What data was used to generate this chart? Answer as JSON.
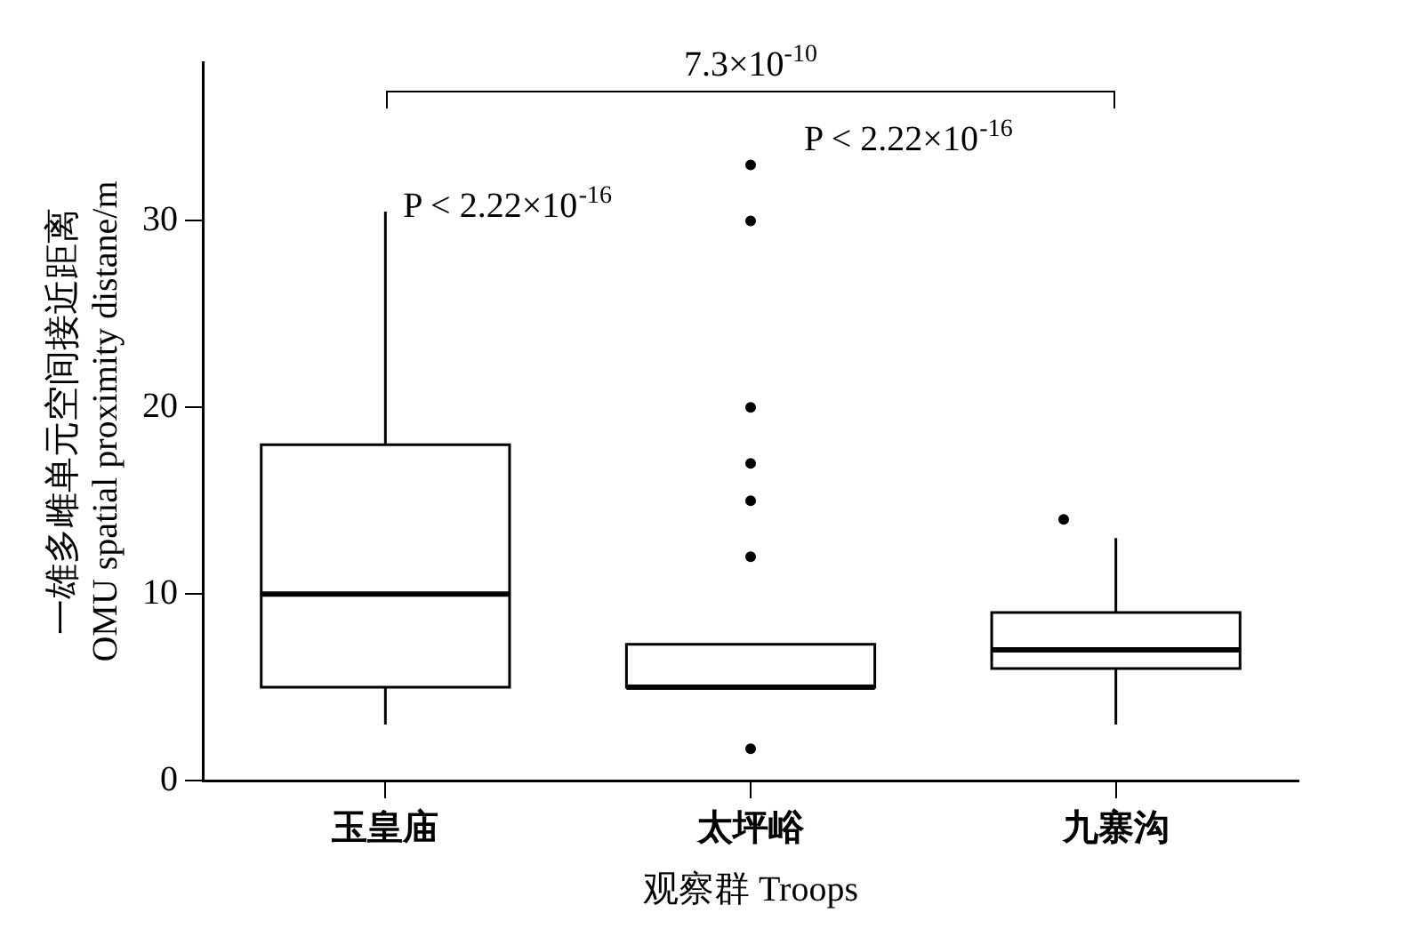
{
  "chart_data": {
    "type": "box",
    "xlabel": "观察群 Troops",
    "ylabel": "一雄多雌单元空间接近距离\nOMU spatial proximity distane/m",
    "categories": [
      "玉皇庙",
      "太坪峪",
      "九寨沟"
    ],
    "boxes": [
      {
        "low": 3,
        "q1": 5,
        "median": 10,
        "q3": 18,
        "high": 30.5
      },
      {
        "low": 5,
        "q1": 5,
        "median": 5,
        "q3": 7.3,
        "high": 7.3,
        "outliers": [
          1.7,
          12,
          15,
          17,
          20,
          30,
          33
        ]
      },
      {
        "low": 3,
        "q1": 6,
        "median": 7,
        "q3": 9,
        "high": 13,
        "outliers": [
          14
        ]
      }
    ],
    "color": "#000000",
    "ylim": [
      0,
      38.5
    ],
    "yticks": [
      0,
      10,
      20,
      30
    ],
    "grid": false,
    "legend": false,
    "annotations": [
      "7.3×10$^{-10}$",
      "P < 2.22×10$^{-16}$",
      "P < 2.22×10$^{-16}$"
    ]
  }
}
